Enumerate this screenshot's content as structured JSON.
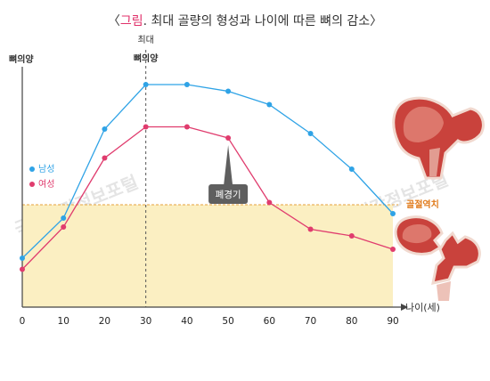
{
  "chart_data": {
    "type": "line",
    "title_open": "〈",
    "title_highlight": "그림",
    "title_rest": ". 최대 골량의 형성과 나이에 따른 뼈의 감소",
    "title_close": "〉",
    "ylabel": "뼈의양",
    "xlabel": "나이(세)",
    "x": [
      0,
      10,
      20,
      30,
      40,
      50,
      60,
      70,
      80,
      90
    ],
    "xlim": [
      0,
      90
    ],
    "ylim": [
      0,
      100
    ],
    "peak_label_line1": "최대",
    "peak_label_line2": "뼈의양",
    "peak_x": 30,
    "fracture_threshold": {
      "label": "골절역치",
      "value": 46
    },
    "callout": {
      "label": "폐경기",
      "x": 50
    },
    "series": [
      {
        "name": "남성",
        "color": "#2fa3e6",
        "values": [
          22,
          40,
          80,
          100,
          100,
          97,
          91,
          78,
          62,
          42
        ]
      },
      {
        "name": "여성",
        "color": "#e03c6e",
        "values": [
          17,
          36,
          67,
          81,
          81,
          76,
          47,
          35,
          32,
          26
        ]
      }
    ],
    "watermark": "국가건강정보포털",
    "colors": {
      "threshold_fill": "#fbefc2",
      "threshold_line": "#e6a23c",
      "axis": "#444444"
    }
  }
}
